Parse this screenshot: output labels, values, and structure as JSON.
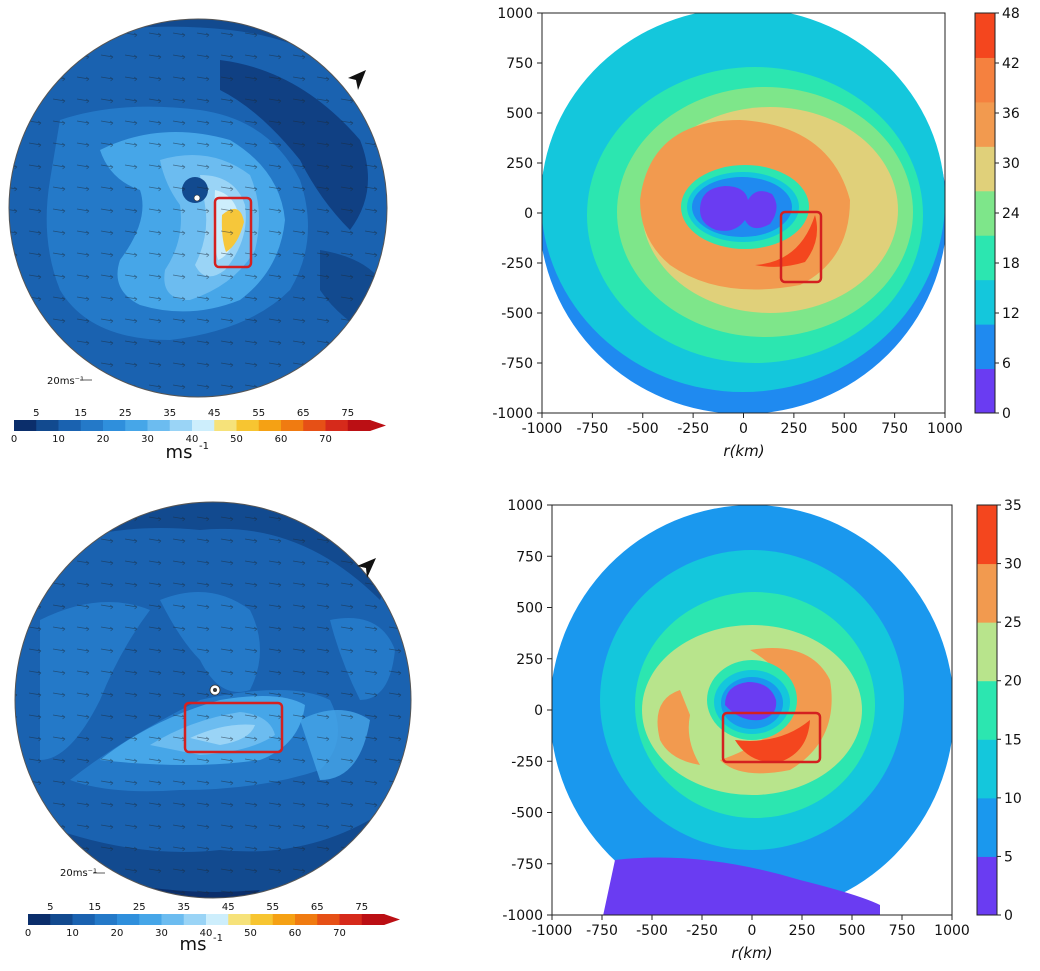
{
  "chart_data": [
    {
      "type": "heatmap",
      "panel": "top-left",
      "title": "",
      "field": "wind speed with wind vectors",
      "arrow_scale_label": "20ms⁻¹",
      "colorbar": {
        "unit": "ms",
        "unit_exp": "-1",
        "upper_labels": [
          "5",
          "15",
          "25",
          "35",
          "45",
          "55",
          "65",
          "75"
        ],
        "lower_labels": [
          "0",
          "10",
          "20",
          "30",
          "40",
          "50",
          "60",
          "70"
        ],
        "levels": [
          0,
          5,
          10,
          15,
          20,
          25,
          30,
          35,
          40,
          45,
          50,
          55,
          60,
          65,
          70,
          75
        ],
        "colors": [
          "#0b2e6b",
          "#124a8f",
          "#1a62b0",
          "#2479c8",
          "#2f8fdc",
          "#46a6e8",
          "#6cbcf0",
          "#9ad4f6",
          "#cdeefc",
          "#f6e27a",
          "#f7c531",
          "#f5a114",
          "#f07b11",
          "#e65016",
          "#d62a1b",
          "#bb0f14"
        ]
      },
      "annotation": "north arrow"
    },
    {
      "type": "heatmap",
      "panel": "top-right",
      "xlabel": "r(km)",
      "ylabel": "",
      "xlim": [
        -1000,
        1000
      ],
      "ylim": [
        -1000,
        1000
      ],
      "x_ticks": [
        "-1000",
        "-750",
        "-500",
        "-250",
        "0",
        "250",
        "500",
        "750",
        "1000"
      ],
      "y_ticks": [
        "1000",
        "750",
        "500",
        "250",
        "0",
        "-250",
        "-500",
        "-750",
        "-1000"
      ],
      "colorbar": {
        "levels": [
          0,
          6,
          12,
          18,
          24,
          30,
          36,
          42,
          48
        ],
        "labels": [
          "48",
          "42",
          "36",
          "30",
          "24",
          "18",
          "12",
          "6",
          "0"
        ],
        "colors": [
          "#6a3cf2",
          "#1f8af0",
          "#14c7dc",
          "#2ce6b0",
          "#7ee68a",
          "#e0d07a",
          "#f29a4f",
          "#f5813f",
          "#f4461e"
        ]
      },
      "highlight_box": {
        "x": [
          180,
          370
        ],
        "y": [
          -340,
          0
        ]
      }
    },
    {
      "type": "heatmap",
      "panel": "bottom-left",
      "field": "wind speed with wind vectors",
      "arrow_scale_label": "20ms⁻¹",
      "colorbar": {
        "unit": "ms",
        "unit_exp": "-1",
        "upper_labels": [
          "5",
          "15",
          "25",
          "35",
          "45",
          "55",
          "65",
          "75"
        ],
        "lower_labels": [
          "0",
          "10",
          "20",
          "30",
          "40",
          "50",
          "60",
          "70"
        ]
      },
      "annotation": "north arrow"
    },
    {
      "type": "heatmap",
      "panel": "bottom-right",
      "xlabel": "r(km)",
      "xlim": [
        -1000,
        1000
      ],
      "ylim": [
        -1000,
        1000
      ],
      "x_ticks": [
        "-1000",
        "-750",
        "-500",
        "-250",
        "0",
        "250",
        "500",
        "750",
        "1000"
      ],
      "y_ticks": [
        "1000",
        "750",
        "500",
        "250",
        "0",
        "-250",
        "-500",
        "-750",
        "-1000"
      ],
      "colorbar": {
        "levels": [
          0,
          5,
          10,
          15,
          20,
          25,
          30,
          35
        ],
        "labels": [
          "35",
          "30",
          "25",
          "20",
          "15",
          "10",
          "5",
          "0"
        ],
        "colors": [
          "#6a3cf2",
          "#1a98ee",
          "#14c7dc",
          "#2ce6b0",
          "#b8e48c",
          "#f29a4f",
          "#f4461e"
        ]
      },
      "highlight_box": {
        "x": [
          -150,
          330
        ],
        "y": [
          -260,
          -20
        ]
      }
    }
  ]
}
